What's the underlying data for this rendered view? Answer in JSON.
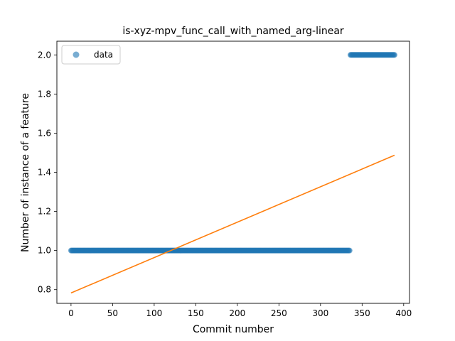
{
  "chart_data": {
    "type": "scatter",
    "title": "is-xyz-mpv_func_call_with_named_arg-linear",
    "xlabel": "Commit number",
    "ylabel": "Number of instance of a feature",
    "xlim": [
      -17,
      407
    ],
    "ylim": [
      0.73,
      2.07
    ],
    "xticks": [
      0,
      50,
      100,
      150,
      200,
      250,
      300,
      350,
      400
    ],
    "yticks": [
      0.8,
      1.0,
      1.2,
      1.4,
      1.6,
      1.8,
      2.0
    ],
    "ytick_format": "1 decimal",
    "legend": {
      "position": "upper-left",
      "entries": [
        "data"
      ]
    },
    "grid": false,
    "series": [
      {
        "name": "data",
        "kind": "scatter",
        "color": "#1f77b4",
        "alpha": 0.6,
        "segments": [
          {
            "x_start": 0,
            "x_end": 335,
            "y": 1.0
          },
          {
            "x_start": 336,
            "x_end": 389,
            "y": 2.0
          }
        ]
      },
      {
        "kind": "line",
        "color": "#ff7f0e",
        "x": [
          0,
          389
        ],
        "y": [
          0.783,
          1.487
        ]
      }
    ]
  }
}
